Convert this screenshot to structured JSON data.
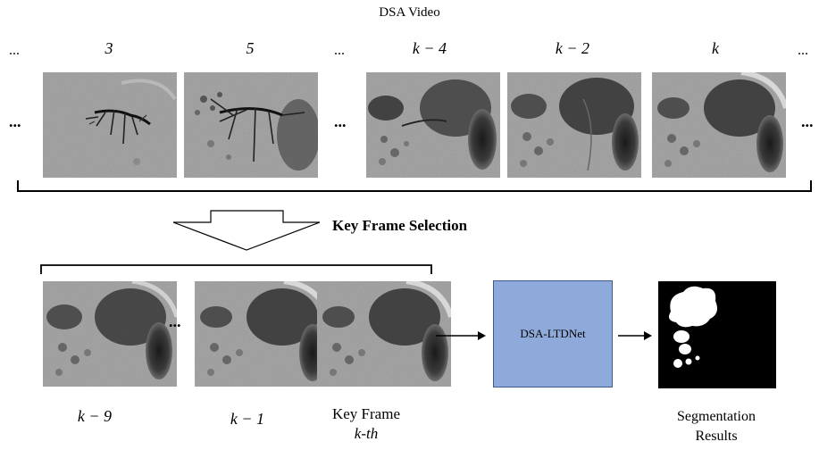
{
  "title": "DSA Video",
  "top_row": {
    "frame_labels": [
      "3",
      "5",
      "k − 4",
      "k − 2",
      "k"
    ],
    "ellipsis": "..."
  },
  "key_frame_selection": "Key Frame Selection",
  "bottom_row": {
    "label_k9": "k − 9",
    "label_k1": "k − 1",
    "key_frame_line1": "Key Frame",
    "key_frame_line2": "k-th",
    "ellipsis": "..."
  },
  "network_label": "DSA-LTDNet",
  "result_label_line1": "Segmentation",
  "result_label_line2": "Results",
  "colors": {
    "network_box": "#8eaadb",
    "frame_bg": "#9a9a9a",
    "mask_bg": "#000000",
    "mask_fg": "#ffffff"
  }
}
